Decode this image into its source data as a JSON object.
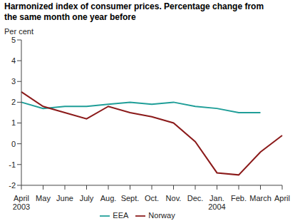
{
  "chart_data": {
    "type": "line",
    "title": "Harmonized index of consumer prices. Percentage change from the same month one year before",
    "y_label": "Per cent",
    "categories": [
      "April 2003",
      "May",
      "June",
      "July",
      "Aug.",
      "Sept.",
      "Oct.",
      "Nov.",
      "Dec.",
      "Jan. 2004",
      "Feb.",
      "March",
      "April"
    ],
    "series": [
      {
        "name": "EEA",
        "color": "#1f9e98",
        "values": [
          2.0,
          1.7,
          1.8,
          1.8,
          1.9,
          2.0,
          1.9,
          2.0,
          1.8,
          1.7,
          1.5,
          1.5,
          null
        ]
      },
      {
        "name": "Norway",
        "color": "#8b1a1a",
        "values": [
          2.5,
          1.8,
          1.5,
          1.2,
          1.8,
          1.5,
          1.3,
          1.0,
          0.1,
          -1.4,
          -1.5,
          -0.4,
          0.4
        ]
      }
    ],
    "ylim": [
      -2,
      5
    ],
    "yticks": [
      -2,
      -1,
      0,
      1,
      2,
      3,
      4,
      5
    ],
    "grid": false,
    "legend": "bottom"
  }
}
